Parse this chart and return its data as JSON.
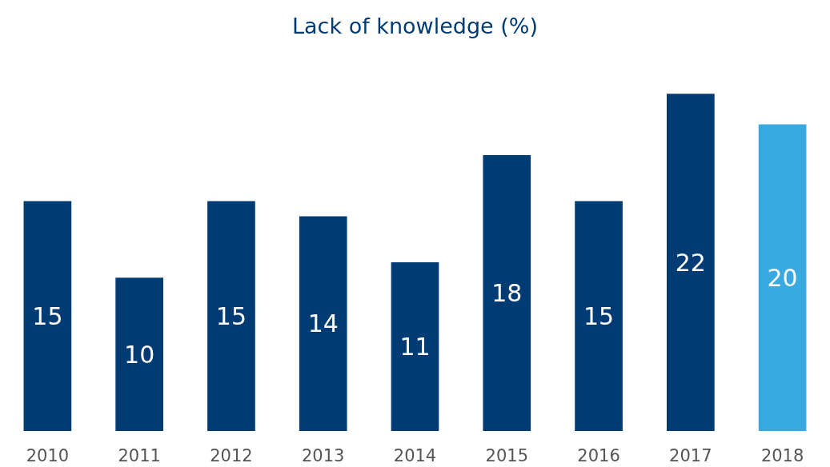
{
  "chart_data": {
    "type": "bar",
    "title": "Lack of knowledge (%)",
    "categories": [
      "2010",
      "2011",
      "2012",
      "2013",
      "2014",
      "2015",
      "2016",
      "2017",
      "2018"
    ],
    "values": [
      15,
      10,
      15,
      14,
      11,
      18,
      15,
      22,
      20
    ],
    "colors": [
      "#003b73",
      "#003b73",
      "#003b73",
      "#003b73",
      "#003b73",
      "#003b73",
      "#003b73",
      "#003b73",
      "#38aae1"
    ],
    "data_labels": true
  }
}
